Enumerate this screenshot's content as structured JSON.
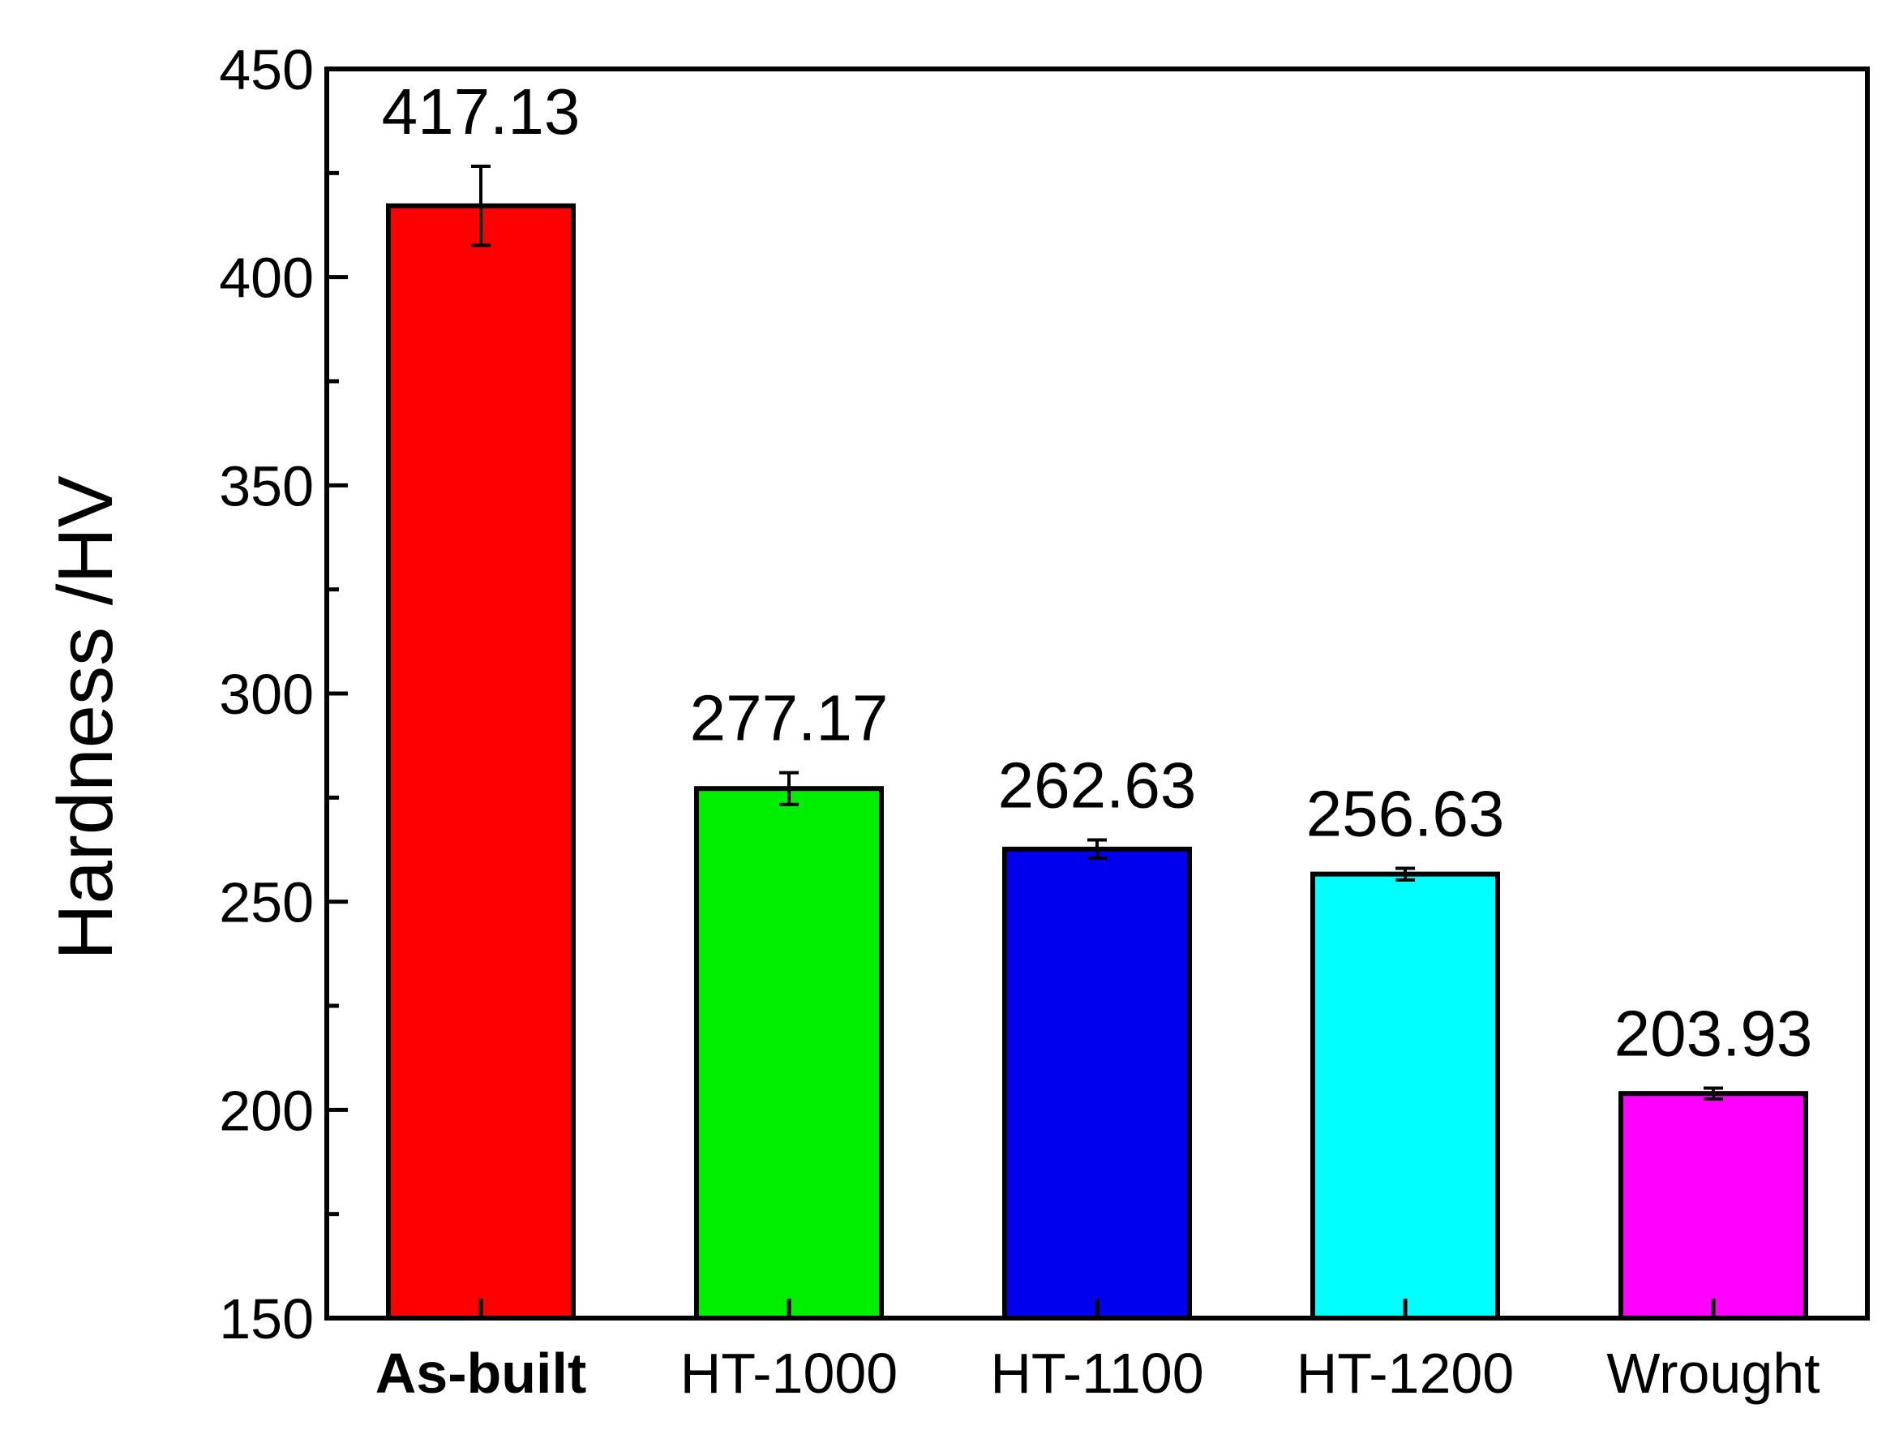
{
  "chart_data": {
    "type": "bar",
    "ylabel": "Hardness /HV",
    "xlabel": "",
    "ylim": [
      150,
      450
    ],
    "yticks": [
      150,
      200,
      250,
      300,
      350,
      400,
      450
    ],
    "y_minor_step": 25,
    "grid": false,
    "categories": [
      "As-built",
      "HT-1000",
      "HT-1100",
      "HT-1200",
      "Wrought"
    ],
    "bold_categories": [
      "As-built"
    ],
    "values": [
      417.13,
      277.17,
      262.63,
      256.63,
      203.93
    ],
    "value_labels": [
      "417.13",
      "277.17",
      "262.63",
      "256.63",
      "203.93"
    ],
    "errors": [
      9.5,
      3.8,
      2.2,
      1.4,
      1.3
    ],
    "colors": [
      "#ff0000",
      "#00ee00",
      "#0000ee",
      "#00ffff",
      "#ff00ff"
    ]
  }
}
